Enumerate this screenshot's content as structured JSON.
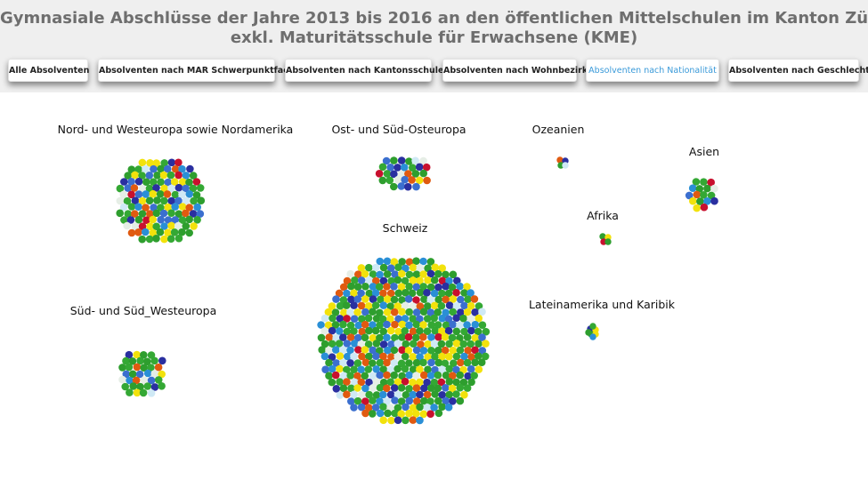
{
  "header": {
    "title_line1": "Gymnasiale Abschlüsse der Jahre 2013 bis 2016 an den öffentlichen Mittelschulen im Kanton Zürich",
    "title_line2": "exkl. Maturitätsschule für Erwachsene (KME)"
  },
  "nav": {
    "buttons": [
      {
        "label": "Alle Absolventen",
        "active": false
      },
      {
        "label": "Absolventen nach MAR Schwerpunktfach",
        "active": false
      },
      {
        "label": "Absolventen nach Kantonsschule",
        "active": false
      },
      {
        "label": "Absolventen nach Wohnbezirk",
        "active": false
      },
      {
        "label": "Absolventen nach Nationalität",
        "active": true
      },
      {
        "label": "Absolventen nach Geschlecht",
        "active": false
      }
    ]
  },
  "colors": {
    "dots": [
      "#2e9e2e",
      "#34a834",
      "#3b6fcf",
      "#2a2fa0",
      "#f2e20c",
      "#e05a10",
      "#c8102e",
      "#2a8fd6",
      "#cfe9f5",
      "#e6eee6"
    ],
    "accent": "#3a9ad9"
  },
  "chart_data": {
    "type": "bubble-cluster",
    "groups": [
      {
        "name": "Nord- und Westeuropa sowie Nordamerika",
        "relative_size": 0.62
      },
      {
        "name": "Ost- und Süd-Osteuropa",
        "relative_size": 0.17
      },
      {
        "name": "Ozeanien",
        "relative_size": 0.003
      },
      {
        "name": "Asien",
        "relative_size": 0.08
      },
      {
        "name": "Afrika",
        "relative_size": 0.006
      },
      {
        "name": "Schweiz",
        "relative_size": 1.0
      },
      {
        "name": "Süd- und Süd_Westeuropa",
        "relative_size": 0.1
      },
      {
        "name": "Lateinamerika und Karibik",
        "relative_size": 0.008
      }
    ]
  }
}
